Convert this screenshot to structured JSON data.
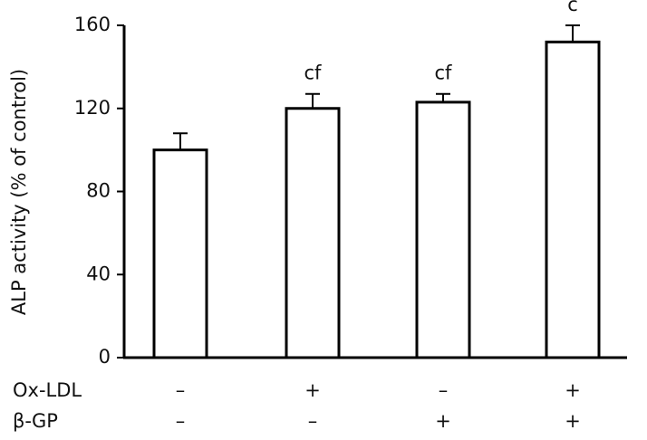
{
  "chart_data": {
    "type": "bar",
    "ylabel": "ALP activity (% of control)",
    "values": [
      100,
      120,
      123,
      152
    ],
    "errors": [
      8,
      7,
      4,
      8
    ],
    "annotations": [
      null,
      "cf",
      "cf",
      "c"
    ],
    "conditions": [
      {
        "name": "Ox-LDL",
        "values": [
          "–",
          "+",
          "–",
          "+"
        ]
      },
      {
        "name": "β-GP",
        "values": [
          "–",
          "–",
          "+",
          "+"
        ]
      }
    ],
    "color": "#ffffff",
    "ylim": [
      0,
      160
    ],
    "yticks": [
      0,
      40,
      80,
      120,
      160
    ]
  }
}
